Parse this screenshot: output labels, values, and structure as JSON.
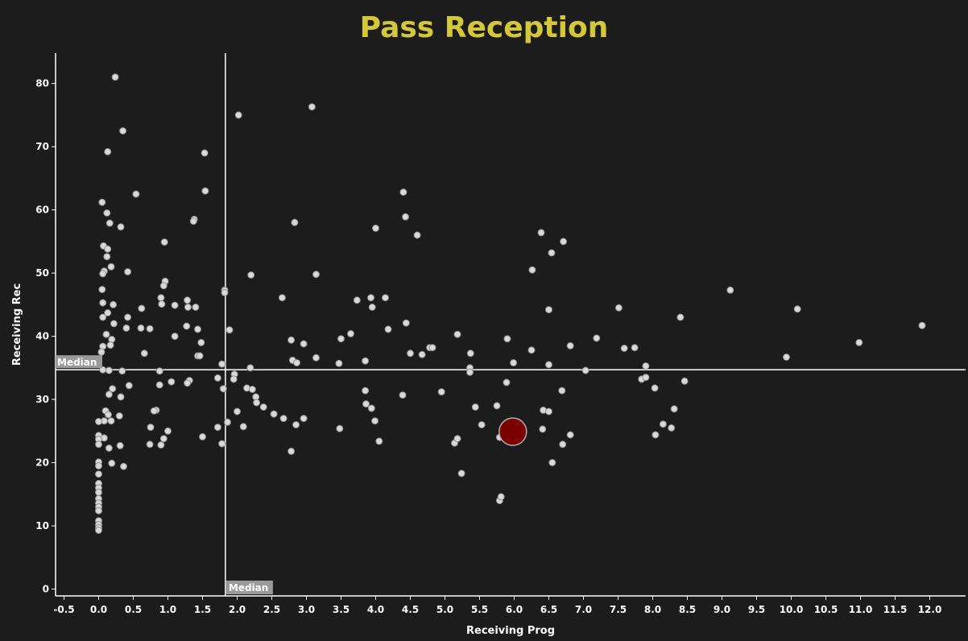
{
  "colors": {
    "background": "#1c1c1c",
    "title": "#d4c83a",
    "axis": "#ffffff",
    "point_fill": "#d9d9d9",
    "point_stroke": "#8c8c8c",
    "highlight_fill": "#7a0000",
    "highlight_stroke": "#b0b0b0",
    "median_label_bg": "#9a9a9a",
    "median_line": "#ffffff"
  },
  "chart_data": {
    "type": "scatter",
    "title": "Pass Reception",
    "xlabel": "Receiving Prog",
    "ylabel": "Receiving Rec",
    "xlim": [
      -0.6,
      12.5
    ],
    "ylim": [
      0,
      85
    ],
    "xticks": [
      -0.5,
      0.0,
      0.5,
      1.0,
      1.5,
      2.0,
      2.5,
      3.0,
      3.5,
      4.0,
      4.5,
      5.0,
      5.5,
      6.0,
      6.5,
      7.0,
      7.5,
      8.0,
      8.5,
      9.0,
      9.5,
      10.0,
      10.5,
      11.0,
      11.5,
      12.0
    ],
    "yticks": [
      0,
      10,
      20,
      30,
      40,
      50,
      60,
      70,
      80
    ],
    "grid": false,
    "median": {
      "x": 1.83,
      "y": 34.7,
      "x_label": "Median",
      "y_label": "Median"
    },
    "highlight": {
      "x": 5.98,
      "y": 24.9
    },
    "points": [
      [
        0.24,
        81.0
      ],
      [
        0.35,
        72.5
      ],
      [
        0.13,
        69.2
      ],
      [
        0.54,
        62.5
      ],
      [
        0.05,
        61.2
      ],
      [
        0.12,
        59.5
      ],
      [
        0.16,
        57.9
      ],
      [
        0.32,
        57.3
      ],
      [
        0.07,
        54.3
      ],
      [
        0.13,
        53.8
      ],
      [
        0.12,
        52.6
      ],
      [
        0.18,
        51.0
      ],
      [
        0.08,
        50.3
      ],
      [
        0.06,
        49.9
      ],
      [
        0.42,
        50.2
      ],
      [
        0.05,
        47.4
      ],
      [
        0.06,
        45.3
      ],
      [
        0.21,
        45.0
      ],
      [
        0.13,
        43.7
      ],
      [
        0.06,
        43.0
      ],
      [
        0.42,
        43.0
      ],
      [
        0.22,
        42.0
      ],
      [
        0.4,
        41.3
      ],
      [
        0.11,
        40.3
      ],
      [
        0.19,
        39.5
      ],
      [
        0.06,
        38.4
      ],
      [
        0.04,
        37.5
      ],
      [
        0.17,
        38.6
      ],
      [
        0.06,
        34.7
      ],
      [
        0.15,
        34.6
      ],
      [
        0.34,
        34.5
      ],
      [
        0.44,
        32.2
      ],
      [
        0.2,
        31.7
      ],
      [
        0.15,
        30.8
      ],
      [
        0.32,
        30.4
      ],
      [
        0.1,
        28.2
      ],
      [
        0.14,
        27.6
      ],
      [
        0.18,
        26.6
      ],
      [
        0.3,
        27.4
      ],
      [
        0.08,
        26.6
      ],
      [
        0.0,
        26.5
      ],
      [
        0.0,
        24.3
      ],
      [
        0.08,
        23.9
      ],
      [
        0.0,
        23.7
      ],
      [
        0.0,
        22.9
      ],
      [
        0.15,
        22.3
      ],
      [
        0.31,
        22.7
      ],
      [
        0.0,
        20.1
      ],
      [
        0.0,
        19.5
      ],
      [
        0.19,
        19.9
      ],
      [
        0.36,
        19.4
      ],
      [
        0.0,
        18.2
      ],
      [
        0.0,
        16.7
      ],
      [
        0.0,
        16.0
      ],
      [
        0.0,
        15.3
      ],
      [
        0.0,
        14.3
      ],
      [
        0.0,
        13.6
      ],
      [
        0.0,
        13.0
      ],
      [
        0.0,
        12.4
      ],
      [
        0.0,
        10.8
      ],
      [
        0.0,
        10.2
      ],
      [
        0.0,
        9.7
      ],
      [
        0.0,
        9.3
      ],
      [
        0.62,
        44.4
      ],
      [
        0.74,
        41.2
      ],
      [
        0.61,
        41.3
      ],
      [
        0.66,
        37.3
      ],
      [
        0.9,
        46.1
      ],
      [
        0.96,
        48.7
      ],
      [
        0.94,
        48.0
      ],
      [
        0.91,
        45.1
      ],
      [
        1.1,
        44.9
      ],
      [
        0.95,
        54.9
      ],
      [
        1.1,
        40.0
      ],
      [
        0.88,
        34.5
      ],
      [
        0.88,
        32.3
      ],
      [
        1.05,
        32.8
      ],
      [
        0.83,
        28.3
      ],
      [
        0.8,
        28.2
      ],
      [
        0.75,
        25.6
      ],
      [
        1.0,
        25.0
      ],
      [
        0.74,
        22.9
      ],
      [
        0.94,
        23.8
      ],
      [
        0.9,
        22.8
      ],
      [
        1.53,
        69.0
      ],
      [
        1.54,
        63.0
      ],
      [
        1.38,
        58.5
      ],
      [
        1.37,
        58.2
      ],
      [
        1.28,
        45.7
      ],
      [
        1.29,
        44.6
      ],
      [
        1.4,
        44.6
      ],
      [
        1.27,
        41.6
      ],
      [
        1.43,
        41.1
      ],
      [
        1.48,
        39.0
      ],
      [
        1.43,
        36.9
      ],
      [
        1.46,
        36.9
      ],
      [
        1.31,
        33.0
      ],
      [
        1.28,
        32.6
      ],
      [
        1.5,
        24.1
      ],
      [
        1.72,
        33.4
      ],
      [
        1.8,
        31.7
      ],
      [
        1.72,
        25.6
      ],
      [
        1.78,
        35.6
      ],
      [
        1.78,
        23.0
      ],
      [
        1.82,
        47.3
      ],
      [
        1.82,
        46.9
      ],
      [
        2.02,
        75.0
      ],
      [
        1.89,
        41.0
      ],
      [
        1.96,
        34.0
      ],
      [
        1.95,
        33.2
      ],
      [
        2.14,
        31.8
      ],
      [
        2.22,
        31.6
      ],
      [
        2.27,
        30.4
      ],
      [
        2.0,
        28.1
      ],
      [
        1.86,
        26.4
      ],
      [
        2.09,
        25.7
      ],
      [
        2.19,
        35.0
      ],
      [
        2.2,
        49.7
      ],
      [
        2.28,
        29.5
      ],
      [
        2.38,
        28.8
      ],
      [
        2.53,
        27.7
      ],
      [
        2.65,
        46.1
      ],
      [
        2.67,
        27.0
      ],
      [
        2.8,
        36.2
      ],
      [
        2.86,
        35.8
      ],
      [
        2.78,
        39.4
      ],
      [
        2.83,
        58.0
      ],
      [
        2.85,
        26.0
      ],
      [
        2.78,
        21.8
      ],
      [
        2.96,
        27.0
      ],
      [
        2.96,
        38.8
      ],
      [
        3.08,
        76.3
      ],
      [
        3.14,
        49.8
      ],
      [
        3.14,
        36.6
      ],
      [
        3.47,
        35.7
      ],
      [
        3.5,
        39.6
      ],
      [
        3.48,
        25.4
      ],
      [
        3.64,
        40.4
      ],
      [
        3.73,
        45.7
      ],
      [
        3.85,
        36.1
      ],
      [
        3.85,
        31.4
      ],
      [
        3.86,
        29.3
      ],
      [
        3.94,
        28.6
      ],
      [
        3.93,
        46.1
      ],
      [
        3.95,
        44.6
      ],
      [
        3.99,
        26.6
      ],
      [
        4.0,
        57.1
      ],
      [
        4.05,
        23.4
      ],
      [
        4.14,
        46.1
      ],
      [
        4.18,
        41.1
      ],
      [
        4.39,
        30.7
      ],
      [
        4.4,
        62.8
      ],
      [
        4.43,
        58.9
      ],
      [
        4.44,
        42.1
      ],
      [
        4.5,
        37.3
      ],
      [
        4.6,
        56.0
      ],
      [
        4.67,
        37.1
      ],
      [
        4.78,
        38.2
      ],
      [
        4.82,
        38.2
      ],
      [
        4.95,
        31.2
      ],
      [
        5.14,
        23.1
      ],
      [
        5.18,
        23.8
      ],
      [
        5.18,
        40.3
      ],
      [
        5.24,
        18.3
      ],
      [
        5.37,
        37.3
      ],
      [
        5.36,
        35.0
      ],
      [
        5.36,
        34.3
      ],
      [
        5.44,
        28.8
      ],
      [
        5.53,
        26.0
      ],
      [
        5.75,
        29.0
      ],
      [
        5.79,
        24.0
      ],
      [
        5.79,
        14.0
      ],
      [
        5.81,
        14.6
      ],
      [
        5.89,
        32.7
      ],
      [
        5.9,
        39.6
      ],
      [
        5.99,
        35.8
      ],
      [
        6.25,
        37.8
      ],
      [
        6.26,
        50.5
      ],
      [
        6.39,
        56.4
      ],
      [
        6.41,
        25.3
      ],
      [
        6.42,
        28.3
      ],
      [
        6.5,
        28.1
      ],
      [
        6.5,
        35.5
      ],
      [
        6.5,
        44.2
      ],
      [
        6.54,
        53.2
      ],
      [
        6.55,
        20.0
      ],
      [
        6.69,
        31.4
      ],
      [
        6.7,
        22.9
      ],
      [
        6.71,
        55.0
      ],
      [
        6.81,
        24.4
      ],
      [
        6.81,
        38.5
      ],
      [
        7.03,
        34.6
      ],
      [
        7.19,
        39.7
      ],
      [
        7.51,
        44.5
      ],
      [
        7.59,
        38.1
      ],
      [
        7.74,
        38.2
      ],
      [
        7.84,
        33.2
      ],
      [
        7.9,
        33.5
      ],
      [
        7.9,
        35.3
      ],
      [
        8.03,
        31.8
      ],
      [
        8.04,
        24.4
      ],
      [
        8.15,
        26.1
      ],
      [
        8.27,
        25.5
      ],
      [
        8.31,
        28.5
      ],
      [
        8.4,
        43.0
      ],
      [
        8.46,
        32.9
      ],
      [
        9.12,
        47.3
      ],
      [
        9.93,
        36.7
      ],
      [
        10.09,
        44.3
      ],
      [
        10.98,
        39.0
      ],
      [
        11.89,
        41.7
      ]
    ]
  }
}
